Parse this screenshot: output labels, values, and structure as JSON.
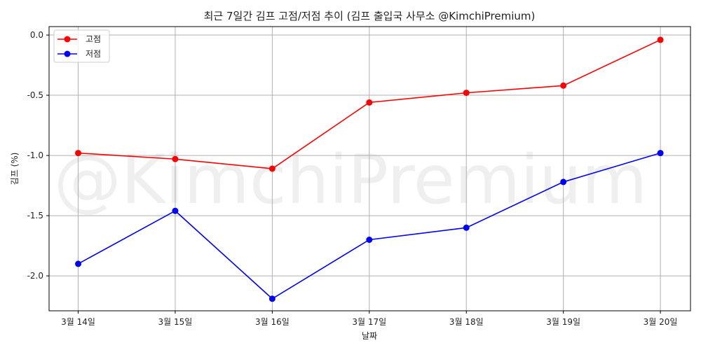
{
  "chart_data": {
    "type": "line",
    "title": "최근 7일간 김프 고점/저점 추이 (김프 출입국 사무소 @KimchiPremium)",
    "xlabel": "날짜",
    "ylabel": "김프 (%)",
    "watermark": "@KimchiPremium",
    "categories": [
      "3월 14일",
      "3월 15일",
      "3월 16일",
      "3월 17일",
      "3월 18일",
      "3월 19일",
      "3월 20일"
    ],
    "yticks": [
      0.0,
      -0.5,
      -1.0,
      -1.5,
      -2.0
    ],
    "ytick_labels": [
      "0.0",
      "-0.5",
      "-1.0",
      "-1.5",
      "-2.0"
    ],
    "ylim": [
      -2.29,
      0.07
    ],
    "grid": true,
    "legend_position": "top-left",
    "series": [
      {
        "name": "고점",
        "color": "#ff0000",
        "marker": "circle",
        "values": [
          -0.98,
          -1.03,
          -1.11,
          -0.56,
          -0.48,
          -0.42,
          -0.04
        ]
      },
      {
        "name": "저점",
        "color": "#0000ff",
        "marker": "circle",
        "values": [
          -1.9,
          -1.46,
          -2.19,
          -1.7,
          -1.6,
          -1.22,
          -0.98
        ]
      }
    ]
  }
}
